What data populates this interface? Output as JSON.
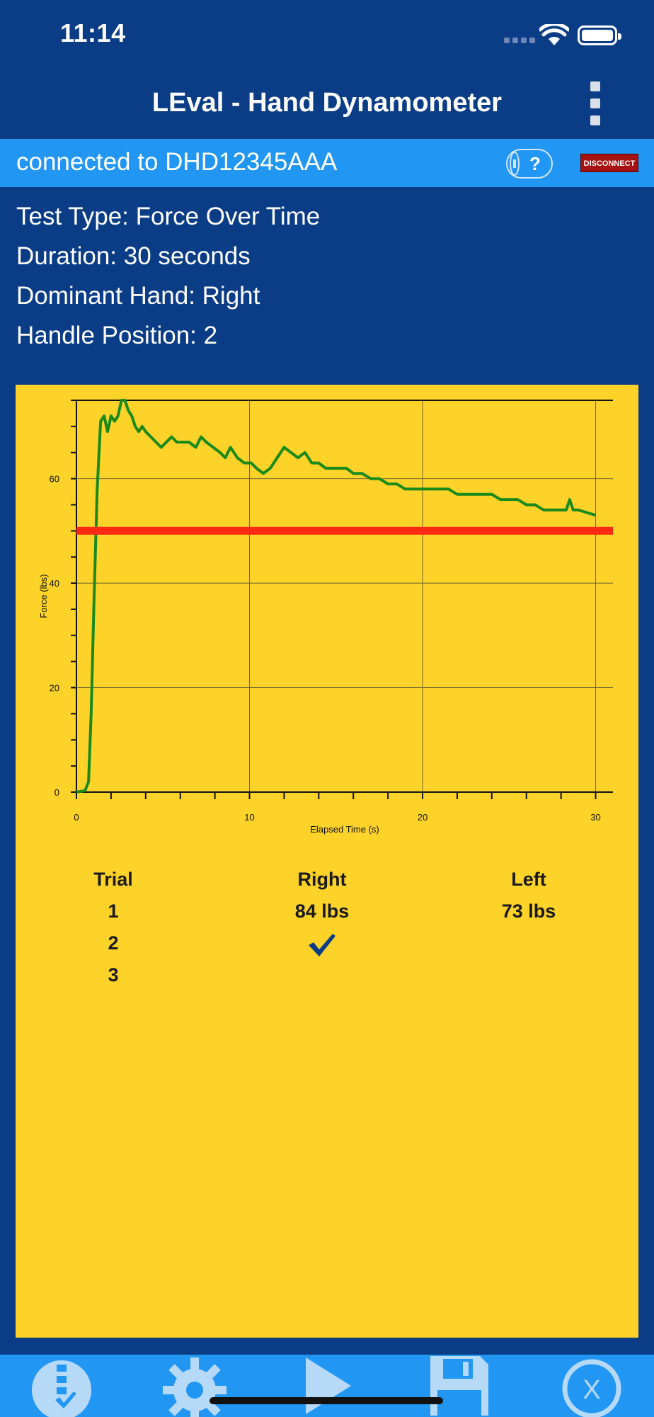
{
  "status": {
    "time": "11:14"
  },
  "header": {
    "title": "LEval - Hand Dynamometer",
    "menu_icon": "kebab-menu-icon"
  },
  "connection": {
    "text": "connected to DHD12345AAA",
    "help_icon": "help-icon",
    "disconnect_label": "DISCONNECT"
  },
  "test_info": {
    "type": "Test Type: Force Over Time",
    "duration": "Duration: 30 seconds",
    "dominant_hand": "Dominant Hand: Right",
    "handle_position": "Handle Position: 2"
  },
  "chart_data": {
    "type": "line",
    "title": "",
    "xlabel": "Elapsed Time (s)",
    "ylabel": "Force (lbs)",
    "xlim": [
      0,
      31
    ],
    "ylim": [
      0,
      75
    ],
    "xticks": [
      0,
      10,
      20,
      30
    ],
    "yticks": [
      0,
      20,
      40,
      60
    ],
    "grid": true,
    "series": [
      {
        "color": "#1a8a1a",
        "x": [
          0,
          0.5,
          0.7,
          0.85,
          1.0,
          1.2,
          1.4,
          1.6,
          1.8,
          2.0,
          2.2,
          2.4,
          2.6,
          2.8,
          3.0,
          3.2,
          3.4,
          3.6,
          3.8,
          4.0,
          4.3,
          4.6,
          4.9,
          5.2,
          5.5,
          5.8,
          6.1,
          6.5,
          6.9,
          7.2,
          7.5,
          7.9,
          8.3,
          8.6,
          8.9,
          9.3,
          9.7,
          10.1,
          10.4,
          10.8,
          11.2,
          11.6,
          12.0,
          12.4,
          12.8,
          13.2,
          13.6,
          14.0,
          14.4,
          14.8,
          15.2,
          15.6,
          16.0,
          16.5,
          17.0,
          17.5,
          18.0,
          18.5,
          19.0,
          19.5,
          20.0,
          20.5,
          21.0,
          21.5,
          22.0,
          22.5,
          23.0,
          23.5,
          24.0,
          24.5,
          25.0,
          25.5,
          26.0,
          26.5,
          27.0,
          27.5,
          28.0,
          28.3,
          28.5,
          28.7,
          29.0,
          29.5,
          30.0
        ],
        "y": [
          0,
          0.3,
          2,
          15,
          35,
          58,
          71,
          72,
          69,
          72,
          71,
          72,
          75,
          75,
          73,
          72,
          70,
          69,
          70,
          69,
          68,
          67,
          66,
          67,
          68,
          67,
          67,
          67,
          66,
          68,
          67,
          66,
          65,
          64,
          66,
          64,
          63,
          63,
          62,
          61,
          62,
          64,
          66,
          65,
          64,
          65,
          63,
          63,
          62,
          62,
          62,
          62,
          61,
          61,
          60,
          60,
          59,
          59,
          58,
          58,
          58,
          58,
          58,
          58,
          57,
          57,
          57,
          57,
          57,
          56,
          56,
          56,
          55,
          55,
          54,
          54,
          54,
          54,
          56,
          54,
          54,
          53.5,
          53
        ]
      },
      {
        "color": "#ff2a14",
        "x": [
          0,
          31
        ],
        "y": [
          50,
          50
        ]
      }
    ]
  },
  "results": {
    "headers": [
      "Trial",
      "Right",
      "Left"
    ],
    "rows": [
      {
        "trial": "1",
        "right": "84 lbs",
        "left": "73 lbs"
      },
      {
        "trial": "2",
        "right": "",
        "left": ""
      },
      {
        "trial": "3",
        "right": "",
        "left": ""
      }
    ],
    "check_icon": "checkmark-icon"
  },
  "tabbar": {
    "items": [
      "test-list-icon",
      "settings-gear-icon",
      "play-icon",
      "save-icon",
      "close-circle-icon"
    ]
  },
  "colors": {
    "background": "#0a3d86",
    "banner": "#2196f3",
    "panel": "#fdd229",
    "disconnect": "#a51010",
    "series": "#1a8a1a",
    "threshold": "#ff2a14"
  }
}
